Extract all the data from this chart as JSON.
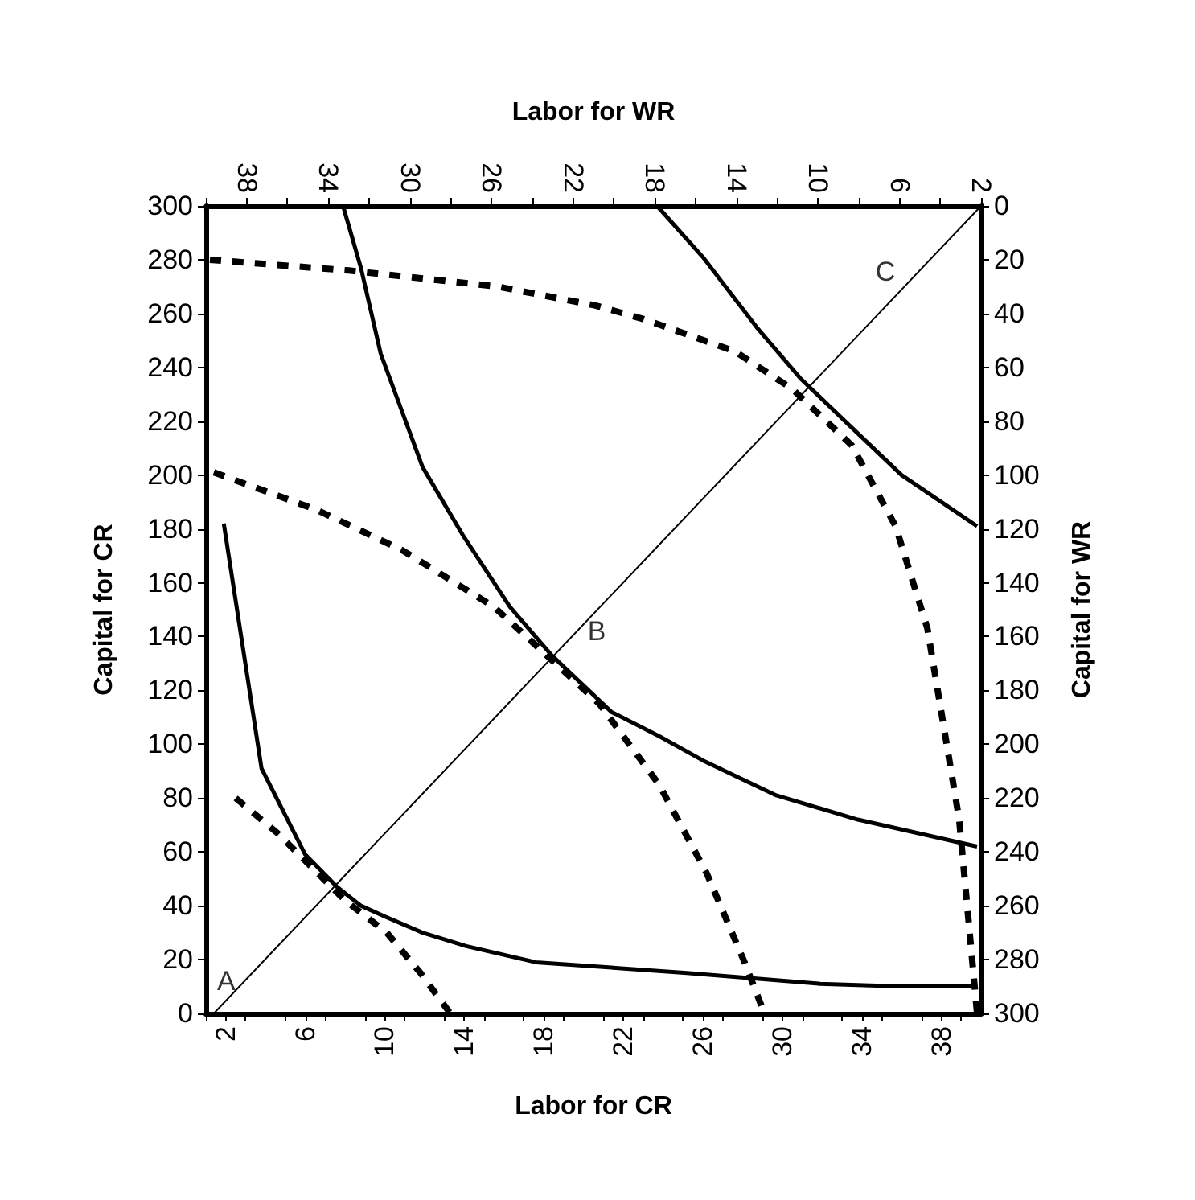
{
  "chart_data": {
    "type": "line",
    "xlabel": "Labor for CR",
    "ylabel": "Capital for CR",
    "x2label": "Labor for WR",
    "y2label": "Capital for WR",
    "xlim": [
      1,
      40
    ],
    "xticks": [
      {
        "value": 1,
        "label": null
      },
      2,
      {
        "value": 3,
        "label": null
      },
      {
        "value": 5,
        "label": null
      },
      6,
      {
        "value": 7,
        "label": null
      },
      {
        "value": 9,
        "label": null
      },
      10,
      {
        "value": 11,
        "label": null
      },
      {
        "value": 13,
        "label": null
      },
      14,
      {
        "value": 15,
        "label": null
      },
      {
        "value": 17,
        "label": null
      },
      18,
      {
        "value": 19,
        "label": null
      },
      {
        "value": 21,
        "label": null
      },
      22,
      {
        "value": 23,
        "label": null
      },
      {
        "value": 25,
        "label": null
      },
      26,
      {
        "value": 27,
        "label": null
      },
      {
        "value": 29,
        "label": null
      },
      30,
      {
        "value": 31,
        "label": null
      },
      {
        "value": 33,
        "label": null
      },
      34,
      {
        "value": 35,
        "label": null
      },
      {
        "value": 37,
        "label": null
      },
      38,
      {
        "value": 39,
        "label": null
      }
    ],
    "x2lim": [
      40,
      2
    ],
    "x2ticks": [
      {
        "value": 40,
        "label": null
      },
      38,
      {
        "value": 36,
        "label": null
      },
      34,
      {
        "value": 32,
        "label": null
      },
      30,
      {
        "value": 28,
        "label": null
      },
      26,
      {
        "value": 24,
        "label": null
      },
      22,
      {
        "value": 20,
        "label": null
      },
      18,
      {
        "value": 16,
        "label": null
      },
      14,
      {
        "value": 12,
        "label": null
      },
      10,
      {
        "value": 8,
        "label": null
      },
      6,
      {
        "value": 4,
        "label": null
      },
      2
    ],
    "ylim": [
      0,
      300
    ],
    "yticks": [
      0,
      20,
      40,
      60,
      80,
      100,
      120,
      140,
      160,
      180,
      200,
      220,
      240,
      260,
      280,
      300
    ],
    "y2lim": [
      300,
      0
    ],
    "y2ticks": [
      0,
      20,
      40,
      60,
      80,
      100,
      120,
      140,
      160,
      180,
      200,
      220,
      240,
      260,
      280,
      300
    ],
    "grid": false,
    "marker": "none",
    "series": [
      {
        "color": "#000000",
        "line_style": "solid",
        "x": [
          1.4,
          40
        ],
        "values": [
          0,
          300
        ]
      },
      {
        "color": "#000000",
        "line_style": "solid",
        "x": [
          1.9,
          3.8,
          6.0,
          7.6,
          8.8,
          10.0,
          11.9,
          14.1,
          17.6,
          21.4,
          25.2,
          31.9,
          36.0,
          39.8
        ],
        "values": [
          182,
          91,
          59,
          47,
          40,
          36,
          30,
          25,
          19,
          17,
          15,
          11,
          10,
          10
        ]
      },
      {
        "color": "#000000",
        "line_style": "solid",
        "x": [
          7.9,
          8.8,
          9.8,
          11.9,
          13.9,
          16.3,
          18.4,
          21.4,
          23.8,
          26.0,
          29.7,
          33.8,
          39.8
        ],
        "values": [
          300,
          277,
          245,
          203,
          178,
          151,
          133,
          112,
          103,
          94,
          81,
          72,
          62
        ]
      },
      {
        "color": "#000000",
        "line_style": "solid",
        "x": [
          23.7,
          26.0,
          28.7,
          30.9,
          33.3,
          36.0,
          39.8
        ],
        "values": [
          300,
          281,
          255,
          236,
          219,
          200,
          181
        ]
      },
      {
        "color": "#000000",
        "line_style": "dashed",
        "x": [
          2.5,
          4.6,
          8.0,
          10.1,
          11.8,
          13.3
        ],
        "values": [
          80,
          67,
          42,
          30,
          15,
          0
        ]
      },
      {
        "color": "#000000",
        "line_style": "dashed",
        "x": [
          1.4,
          6.6,
          10.9,
          15.5,
          20.8,
          23.8,
          26.2,
          28.1,
          29.1
        ],
        "values": [
          201,
          187,
          172,
          151,
          115,
          85,
          52,
          19,
          0
        ]
      },
      {
        "color": "#000000",
        "line_style": "dashed",
        "x": [
          1.2,
          8.2,
          15.7,
          20.6,
          23.0,
          27.6,
          30.5,
          33.5,
          35.7,
          37.3,
          38.9,
          39.6,
          39.8
        ],
        "values": [
          280,
          276,
          270,
          263,
          258,
          246,
          232,
          211,
          181,
          143,
          72,
          16,
          0
        ]
      }
    ],
    "annotations": [
      {
        "text": "A",
        "x": 1.4,
        "y": 0
      },
      {
        "text": "B",
        "x": 18.4,
        "y": 132
      },
      {
        "text": "C",
        "x": 37.3,
        "y": 279
      }
    ]
  }
}
